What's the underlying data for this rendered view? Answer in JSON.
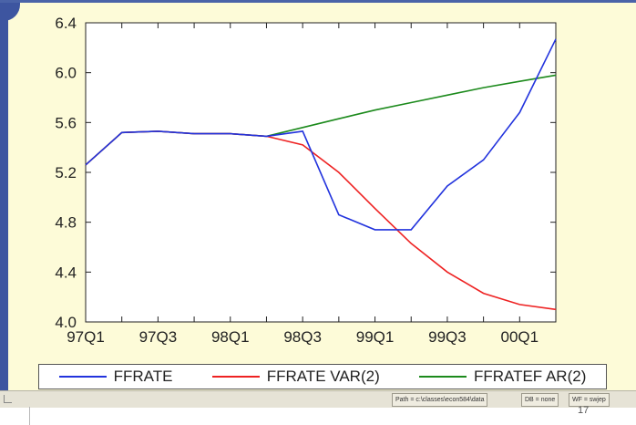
{
  "chart_data": {
    "type": "line",
    "title": "",
    "xlabel": "",
    "ylabel": "",
    "ylim": [
      4.0,
      6.4
    ],
    "yticks": [
      "4.0",
      "4.4",
      "4.8",
      "5.2",
      "5.6",
      "6.0",
      "6.4"
    ],
    "xlim": [
      "97Q1",
      "00Q3"
    ],
    "xticks": [
      "97Q1",
      "97Q3",
      "98Q1",
      "98Q3",
      "99Q1",
      "99Q3",
      "00Q1"
    ],
    "grid": false,
    "legend_position": "bottom",
    "x": [
      "97Q1",
      "97Q2",
      "97Q3",
      "97Q4",
      "98Q1",
      "98Q2",
      "98Q3",
      "98Q4",
      "99Q1",
      "99Q2",
      "99Q3",
      "99Q4",
      "00Q1",
      "00Q2"
    ],
    "series": [
      {
        "name": "FFRATE",
        "color": "#2233dd",
        "values": [
          5.26,
          5.52,
          5.53,
          5.51,
          5.51,
          5.49,
          5.53,
          4.86,
          4.74,
          4.74,
          5.09,
          5.3,
          5.68,
          6.27
        ]
      },
      {
        "name": "FFRATE VAR(2)",
        "color": "#ee2222",
        "values": [
          5.26,
          5.52,
          5.53,
          5.51,
          5.51,
          5.49,
          5.42,
          5.2,
          4.91,
          4.63,
          4.4,
          4.23,
          4.14,
          4.1
        ]
      },
      {
        "name": "FFRATEF AR(2)",
        "color": "#1c8a1c",
        "values": [
          5.26,
          5.52,
          5.53,
          5.51,
          5.51,
          5.49,
          5.56,
          5.63,
          5.7,
          5.76,
          5.82,
          5.88,
          5.93,
          5.98
        ]
      }
    ]
  },
  "statusbar": {
    "path": "Path = c:\\classes\\econ584\\data",
    "db": "DB = none",
    "wf": "WF = swjep"
  },
  "page_number": "17"
}
